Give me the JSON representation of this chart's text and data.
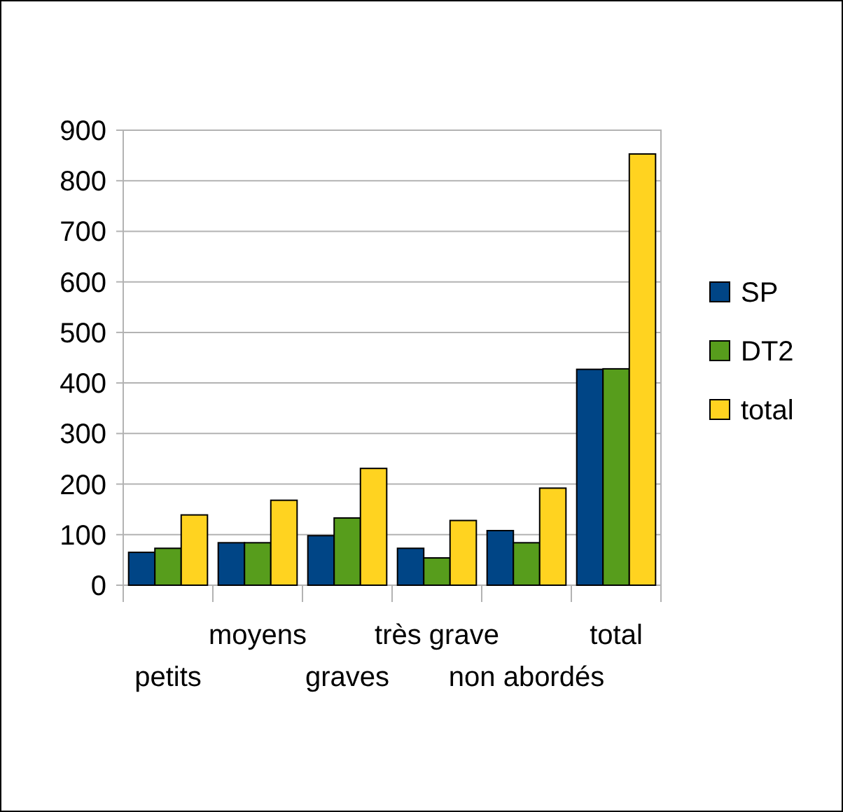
{
  "chart_data": {
    "type": "bar",
    "categories": [
      "petits",
      "moyens",
      "graves",
      "très grave",
      "non abordés",
      "total"
    ],
    "series": [
      {
        "name": "SP",
        "color": "#004586",
        "values": [
          65,
          84,
          98,
          73,
          108,
          427
        ]
      },
      {
        "name": "DT2",
        "color": "#579d1c",
        "values": [
          73,
          84,
          133,
          54,
          84,
          428
        ]
      },
      {
        "name": "total",
        "color": "#ffd320",
        "values": [
          139,
          168,
          231,
          128,
          192,
          853
        ]
      }
    ],
    "ylim": [
      0,
      900
    ],
    "yticks": [
      0,
      100,
      200,
      300,
      400,
      500,
      600,
      700,
      800,
      900
    ],
    "grid": "y",
    "legend": "right"
  }
}
